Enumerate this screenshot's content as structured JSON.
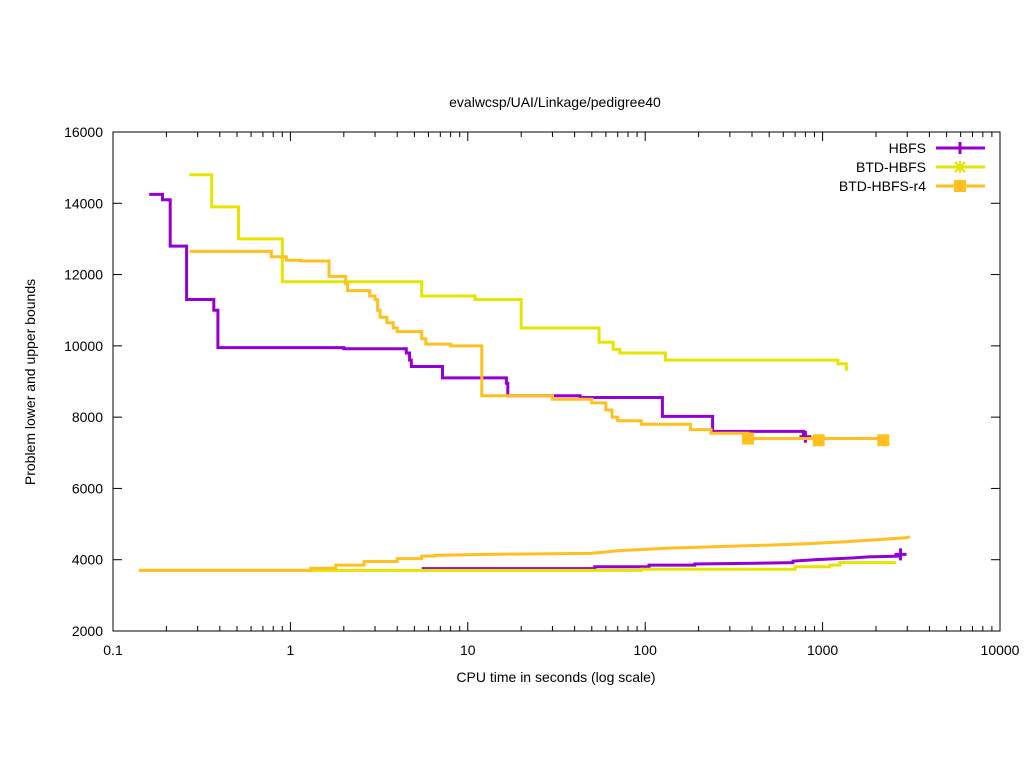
{
  "chart_data": {
    "type": "line",
    "title": "evalwcsp/UAI/Linkage/pedigree40",
    "xlabel": "CPU time in seconds (log scale)",
    "ylabel": "Problem lower and upper bounds",
    "xscale": "log",
    "xlim": [
      0.1,
      10000
    ],
    "ylim": [
      2000,
      16000
    ],
    "xticks": [
      0.1,
      1,
      10,
      100,
      1000,
      10000
    ],
    "xtick_labels": [
      "0.1",
      "1",
      "10",
      "100",
      "1000",
      "10000"
    ],
    "yticks": [
      2000,
      4000,
      6000,
      8000,
      10000,
      12000,
      14000,
      16000
    ],
    "ytick_labels": [
      "2000",
      "4000",
      "6000",
      "8000",
      "10000",
      "12000",
      "14000",
      "16000"
    ],
    "grid": false,
    "legend_position": "top-right",
    "series": [
      {
        "name": "HBFS",
        "color": "#9400d3",
        "marker": "plus",
        "upper": [
          [
            0.16,
            14250
          ],
          [
            0.19,
            14250
          ],
          [
            0.19,
            14100
          ],
          [
            0.21,
            14100
          ],
          [
            0.21,
            12800
          ],
          [
            0.26,
            12800
          ],
          [
            0.26,
            11300
          ],
          [
            0.37,
            11300
          ],
          [
            0.37,
            11000
          ],
          [
            0.39,
            11000
          ],
          [
            0.39,
            9950
          ],
          [
            2.0,
            9950
          ],
          [
            2.0,
            9920
          ],
          [
            4.5,
            9920
          ],
          [
            4.5,
            9800
          ],
          [
            4.7,
            9800
          ],
          [
            4.7,
            9600
          ],
          [
            4.8,
            9600
          ],
          [
            4.8,
            9420
          ],
          [
            7.2,
            9420
          ],
          [
            7.2,
            9100
          ],
          [
            16.5,
            9100
          ],
          [
            16.5,
            8950
          ],
          [
            16.8,
            8950
          ],
          [
            16.8,
            8600
          ],
          [
            43,
            8600
          ],
          [
            43,
            8550
          ],
          [
            125,
            8550
          ],
          [
            125,
            8020
          ],
          [
            240,
            8020
          ],
          [
            240,
            7600
          ],
          [
            780,
            7600
          ],
          [
            780,
            7500
          ],
          [
            800,
            7500
          ]
        ],
        "lower": [
          [
            5.5,
            3750
          ],
          [
            52,
            3750
          ],
          [
            52,
            3800
          ],
          [
            105,
            3800
          ],
          [
            105,
            3850
          ],
          [
            190,
            3850
          ],
          [
            190,
            3880
          ],
          [
            420,
            3900
          ],
          [
            680,
            3920
          ],
          [
            680,
            3960
          ],
          [
            900,
            4000
          ],
          [
            1500,
            4050
          ],
          [
            1800,
            4080
          ],
          [
            2700,
            4100
          ],
          [
            2750,
            4150
          ]
        ],
        "markers": [
          [
            800,
            7450
          ],
          [
            2750,
            4150
          ]
        ]
      },
      {
        "name": "BTD-HBFS",
        "color": "#e5e500",
        "marker": "star",
        "upper": [
          [
            0.27,
            14800
          ],
          [
            0.36,
            14800
          ],
          [
            0.36,
            13900
          ],
          [
            0.51,
            13900
          ],
          [
            0.51,
            13000
          ],
          [
            0.9,
            13000
          ],
          [
            0.9,
            11800
          ],
          [
            5.5,
            11800
          ],
          [
            5.5,
            11400
          ],
          [
            11,
            11400
          ],
          [
            11,
            11300
          ],
          [
            20,
            11300
          ],
          [
            20,
            10500
          ],
          [
            55,
            10500
          ],
          [
            55,
            10100
          ],
          [
            66,
            10100
          ],
          [
            66,
            9900
          ],
          [
            72,
            9900
          ],
          [
            72,
            9800
          ],
          [
            130,
            9800
          ],
          [
            130,
            9600
          ],
          [
            1220,
            9600
          ],
          [
            1220,
            9500
          ],
          [
            1360,
            9500
          ],
          [
            1360,
            9300
          ]
        ],
        "lower": [
          [
            0.14,
            3700
          ],
          [
            95,
            3700
          ],
          [
            95,
            3730
          ],
          [
            700,
            3730
          ],
          [
            700,
            3800
          ],
          [
            1100,
            3800
          ],
          [
            1100,
            3850
          ],
          [
            1250,
            3850
          ],
          [
            1250,
            3920
          ],
          [
            2550,
            3920
          ],
          [
            2550,
            3950
          ]
        ],
        "markers": []
      },
      {
        "name": "BTD-HBFS-r4",
        "color": "#ffc020",
        "marker": "square",
        "upper": [
          [
            0.27,
            12650
          ],
          [
            0.78,
            12650
          ],
          [
            0.78,
            12500
          ],
          [
            0.95,
            12500
          ],
          [
            0.95,
            12400
          ],
          [
            1.15,
            12400
          ],
          [
            1.15,
            12380
          ],
          [
            1.65,
            12380
          ],
          [
            1.65,
            11950
          ],
          [
            2.05,
            11950
          ],
          [
            2.05,
            11750
          ],
          [
            2.1,
            11750
          ],
          [
            2.1,
            11550
          ],
          [
            2.8,
            11550
          ],
          [
            2.8,
            11400
          ],
          [
            3.0,
            11400
          ],
          [
            3.0,
            11300
          ],
          [
            3.1,
            11300
          ],
          [
            3.1,
            11000
          ],
          [
            3.2,
            11000
          ],
          [
            3.2,
            10800
          ],
          [
            3.5,
            10800
          ],
          [
            3.5,
            10650
          ],
          [
            3.8,
            10650
          ],
          [
            3.8,
            10500
          ],
          [
            4.0,
            10500
          ],
          [
            4.0,
            10400
          ],
          [
            5.5,
            10400
          ],
          [
            5.5,
            10200
          ],
          [
            5.8,
            10200
          ],
          [
            5.8,
            10050
          ],
          [
            8,
            10050
          ],
          [
            8,
            10000
          ],
          [
            12,
            10000
          ],
          [
            12,
            8600
          ],
          [
            30,
            8600
          ],
          [
            30,
            8500
          ],
          [
            50,
            8500
          ],
          [
            50,
            8400
          ],
          [
            60,
            8400
          ],
          [
            60,
            8200
          ],
          [
            65,
            8200
          ],
          [
            65,
            8000
          ],
          [
            70,
            8000
          ],
          [
            70,
            7900
          ],
          [
            95,
            7900
          ],
          [
            95,
            7800
          ],
          [
            180,
            7800
          ],
          [
            180,
            7650
          ],
          [
            235,
            7650
          ],
          [
            235,
            7550
          ],
          [
            380,
            7550
          ],
          [
            380,
            7400
          ],
          [
            2200,
            7400
          ],
          [
            2200,
            7350
          ]
        ],
        "lower": [
          [
            0.14,
            3700
          ],
          [
            1.3,
            3700
          ],
          [
            1.3,
            3760
          ],
          [
            1.8,
            3760
          ],
          [
            1.8,
            3850
          ],
          [
            2.6,
            3850
          ],
          [
            2.6,
            3950
          ],
          [
            4,
            3950
          ],
          [
            4,
            4030
          ],
          [
            5.5,
            4030
          ],
          [
            5.5,
            4100
          ],
          [
            6.5,
            4100
          ],
          [
            6.5,
            4120
          ],
          [
            13,
            4150
          ],
          [
            30,
            4170
          ],
          [
            50,
            4180
          ],
          [
            55,
            4200
          ],
          [
            70,
            4250
          ],
          [
            90,
            4280
          ],
          [
            110,
            4300
          ],
          [
            140,
            4330
          ],
          [
            200,
            4350
          ],
          [
            300,
            4380
          ],
          [
            500,
            4410
          ],
          [
            800,
            4450
          ],
          [
            1300,
            4500
          ],
          [
            2000,
            4560
          ],
          [
            3000,
            4620
          ],
          [
            3100,
            4650
          ]
        ],
        "markers": [
          [
            380,
            7400
          ],
          [
            950,
            7350
          ],
          [
            2200,
            7350
          ]
        ]
      }
    ]
  }
}
